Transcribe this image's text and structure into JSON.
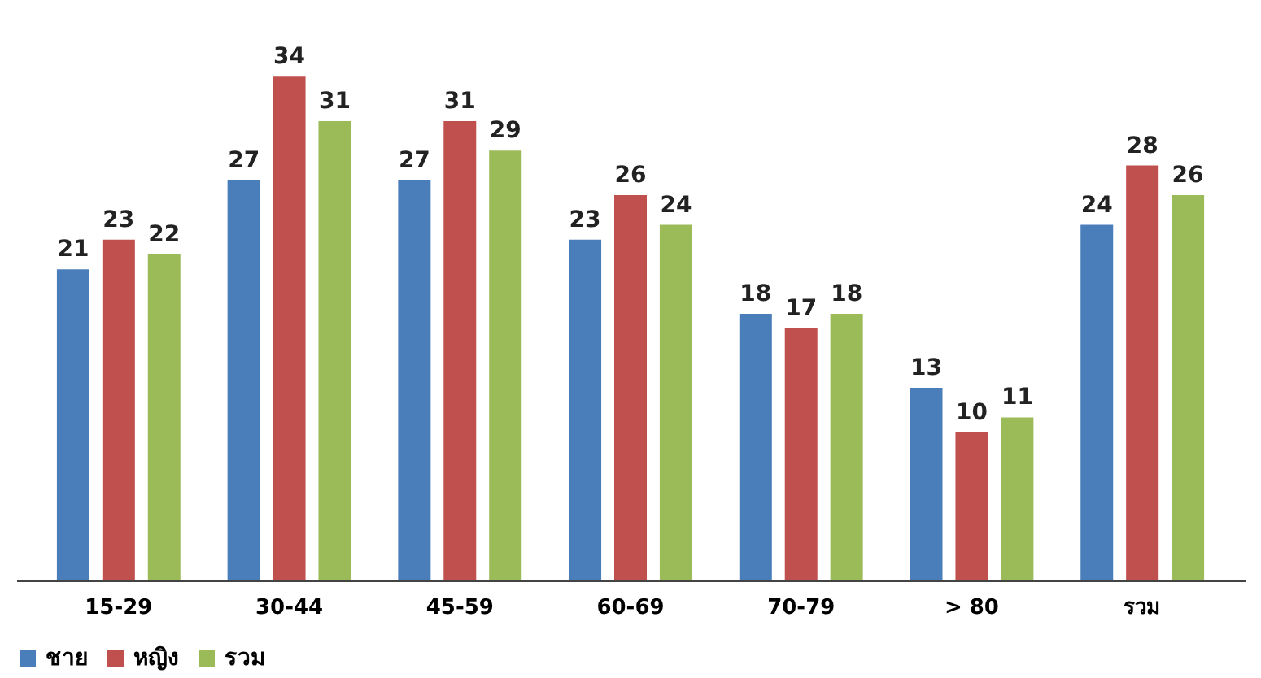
{
  "chart_data": {
    "type": "bar",
    "categories": [
      "15-29",
      "30-44",
      "45-59",
      "60-69",
      "70-79",
      "> 80",
      "รวม"
    ],
    "series": [
      {
        "name": "ชาย",
        "color": "#4a7ebb",
        "values": [
          21,
          27,
          27,
          23,
          18,
          13,
          24
        ]
      },
      {
        "name": "หญิง",
        "color": "#c0504d",
        "values": [
          23,
          34,
          31,
          26,
          17,
          10,
          28
        ]
      },
      {
        "name": "รวม",
        "color": "#9bbb59",
        "values": [
          22,
          31,
          29,
          24,
          18,
          11,
          26
        ]
      }
    ],
    "data_labels": true,
    "legend": "bottom",
    "grid": false
  }
}
